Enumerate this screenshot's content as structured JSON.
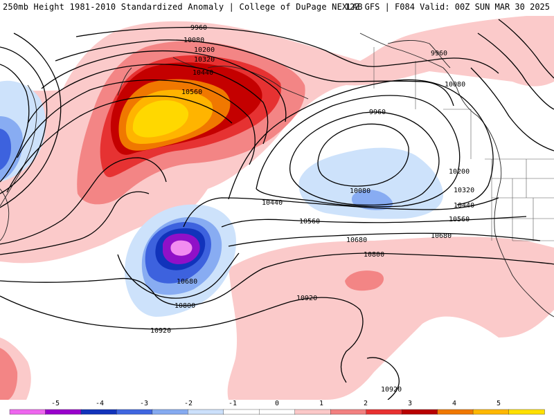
{
  "header": {
    "title_left": "250mb Height 1981-2010 Standardized Anomaly | College of DuPage NEXLAB",
    "title_right": "12Z GFS | F084 Valid: 00Z SUN MAR 30 2025"
  },
  "contour_labels": [
    "9960",
    "10080",
    "10200",
    "10320",
    "10440",
    "10560",
    "9960",
    "10080",
    "9960",
    "10200",
    "10320",
    "10440",
    "10080",
    "10560",
    "10680",
    "10440",
    "10560",
    "10680",
    "10800",
    "10680",
    "10800",
    "10920",
    "10920",
    "10920"
  ],
  "colorbar": {
    "tick_labels": [
      "-5",
      "-4",
      "-3",
      "-2",
      "-1",
      "0",
      "1",
      "2",
      "3",
      "4",
      "5"
    ],
    "colors": [
      "#ee66ee",
      "#9900cc",
      "#1133bb",
      "#3f66e0",
      "#85aaf0",
      "#cce0fb",
      "#ffffff",
      "#ffffff",
      "#fbc8c8",
      "#f28080",
      "#e83030",
      "#b80000",
      "#f07800",
      "#ffb800",
      "#ffe000"
    ]
  },
  "colors": {
    "neg1": "#cde2fb",
    "neg2": "#88acf2",
    "neg3": "#3d62de",
    "neg4": "#1133bb",
    "neg5": "#9010c8",
    "neg6": "#f28cf0",
    "pos1": "#fbcaca",
    "pos2": "#f38585",
    "pos3": "#e63232",
    "pos4": "#c40000",
    "pos5": "#f07800",
    "pos6": "#ffb400",
    "pos7": "#ffd800"
  }
}
